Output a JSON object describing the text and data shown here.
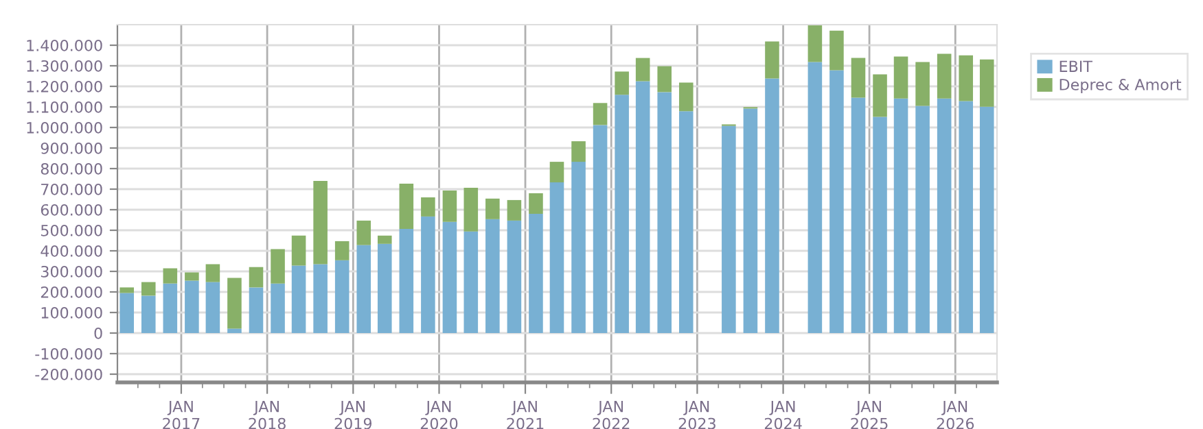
{
  "chart_data": {
    "type": "bar",
    "stacked": true,
    "x": [
      "2016-05-15",
      "2016-08-15",
      "2016-11-15",
      "2017-02-15",
      "2017-05-15",
      "2017-08-15",
      "2017-11-15",
      "2018-02-15",
      "2018-05-15",
      "2018-08-15",
      "2018-11-15",
      "2019-02-15",
      "2019-05-15",
      "2019-08-15",
      "2019-11-15",
      "2020-02-15",
      "2020-05-15",
      "2020-08-15",
      "2020-11-15",
      "2021-02-15",
      "2021-05-15",
      "2021-08-15",
      "2021-11-15",
      "2022-02-15",
      "2022-05-15",
      "2022-08-15",
      "2022-11-15",
      "2023-02-15",
      "2023-05-15",
      "2023-08-15",
      "2023-11-15",
      "2024-02-15",
      "2024-05-15",
      "2024-08-15",
      "2024-11-15",
      "2025-02-15",
      "2025-05-15",
      "2025-08-15",
      "2025-11-15",
      "2026-02-15",
      "2026-05-15"
    ],
    "series": [
      {
        "name": "EBIT",
        "color": "#78b0d3",
        "values": [
          195000,
          182000,
          241000,
          255000,
          248000,
          22000,
          222000,
          241000,
          328000,
          335000,
          354000,
          428000,
          434000,
          507000,
          567000,
          541000,
          494000,
          554000,
          547000,
          580000,
          733000,
          833000,
          1012000,
          1159000,
          1225000,
          1172000,
          1079000,
          null,
          1008000,
          1092000,
          1238000,
          null,
          1318000,
          1278000,
          1145000,
          1052000,
          1141000,
          1105000,
          1141000,
          1128000,
          1101000
        ]
      },
      {
        "name": "Deprec & Amort",
        "color": "#88b068",
        "values": [
          27000,
          66000,
          74000,
          40000,
          87000,
          246000,
          99000,
          167000,
          146000,
          405000,
          93000,
          119000,
          40000,
          220000,
          93000,
          152000,
          213000,
          100000,
          100000,
          100000,
          100000,
          100000,
          107000,
          113000,
          113000,
          126000,
          139000,
          null,
          7000,
          7000,
          180000,
          null,
          180000,
          193000,
          193000,
          206000,
          204000,
          213000,
          217000,
          223000,
          230000
        ]
      }
    ],
    "xlim": [
      "2016-04-05",
      "2026-06-27"
    ],
    "xticks": [
      {
        "value": "2016-07-01",
        "label": null
      },
      {
        "value": "2016-10-01",
        "label": null
      },
      {
        "value": "2017-01-01",
        "label": "JAN\n2017"
      },
      {
        "value": "2017-04-01",
        "label": null
      },
      {
        "value": "2017-07-01",
        "label": null
      },
      {
        "value": "2017-10-01",
        "label": null
      },
      {
        "value": "2018-01-01",
        "label": "JAN\n2018"
      },
      {
        "value": "2018-04-01",
        "label": null
      },
      {
        "value": "2018-07-01",
        "label": null
      },
      {
        "value": "2018-10-01",
        "label": null
      },
      {
        "value": "2019-01-01",
        "label": "JAN\n2019"
      },
      {
        "value": "2019-04-01",
        "label": null
      },
      {
        "value": "2019-07-01",
        "label": null
      },
      {
        "value": "2019-10-01",
        "label": null
      },
      {
        "value": "2020-01-01",
        "label": "JAN\n2020"
      },
      {
        "value": "2020-04-01",
        "label": null
      },
      {
        "value": "2020-07-01",
        "label": null
      },
      {
        "value": "2020-10-01",
        "label": null
      },
      {
        "value": "2021-01-01",
        "label": "JAN\n2021"
      },
      {
        "value": "2021-04-01",
        "label": null
      },
      {
        "value": "2021-07-01",
        "label": null
      },
      {
        "value": "2021-10-01",
        "label": null
      },
      {
        "value": "2022-01-01",
        "label": "JAN\n2022"
      },
      {
        "value": "2022-04-01",
        "label": null
      },
      {
        "value": "2022-07-01",
        "label": null
      },
      {
        "value": "2022-10-01",
        "label": null
      },
      {
        "value": "2023-01-01",
        "label": "JAN\n2023"
      },
      {
        "value": "2023-04-01",
        "label": null
      },
      {
        "value": "2023-07-01",
        "label": null
      },
      {
        "value": "2023-10-01",
        "label": null
      },
      {
        "value": "2024-01-01",
        "label": "JAN\n2024"
      },
      {
        "value": "2024-04-01",
        "label": null
      },
      {
        "value": "2024-07-01",
        "label": null
      },
      {
        "value": "2024-10-01",
        "label": null
      },
      {
        "value": "2025-01-01",
        "label": "JAN\n2025"
      },
      {
        "value": "2025-04-01",
        "label": null
      },
      {
        "value": "2025-07-01",
        "label": null
      },
      {
        "value": "2025-10-01",
        "label": null
      },
      {
        "value": "2026-01-01",
        "label": "JAN\n2026"
      },
      {
        "value": "2026-04-01",
        "label": null
      }
    ],
    "ylim": [
      -240000,
      1500000
    ],
    "yticks": [
      {
        "value": -200000,
        "label": "-200.000"
      },
      {
        "value": -100000,
        "label": "-100.000"
      },
      0,
      {
        "value": 100000,
        "label": "100.000"
      },
      {
        "value": 200000,
        "label": "200.000"
      },
      {
        "value": 300000,
        "label": "300.000"
      },
      {
        "value": 400000,
        "label": "400.000"
      },
      {
        "value": 500000,
        "label": "500.000"
      },
      {
        "value": 600000,
        "label": "600.000"
      },
      {
        "value": 700000,
        "label": "700.000"
      },
      {
        "value": 800000,
        "label": "800.000"
      },
      {
        "value": 900000,
        "label": "900.000"
      },
      {
        "value": 1000000,
        "label": "1.000.000"
      },
      {
        "value": 1100000,
        "label": "1.100.000"
      },
      {
        "value": 1200000,
        "label": "1.200.000"
      },
      {
        "value": 1300000,
        "label": "1.300.000"
      },
      {
        "value": 1400000,
        "label": "1.400.000"
      }
    ],
    "grid": true,
    "legend": "top right"
  }
}
